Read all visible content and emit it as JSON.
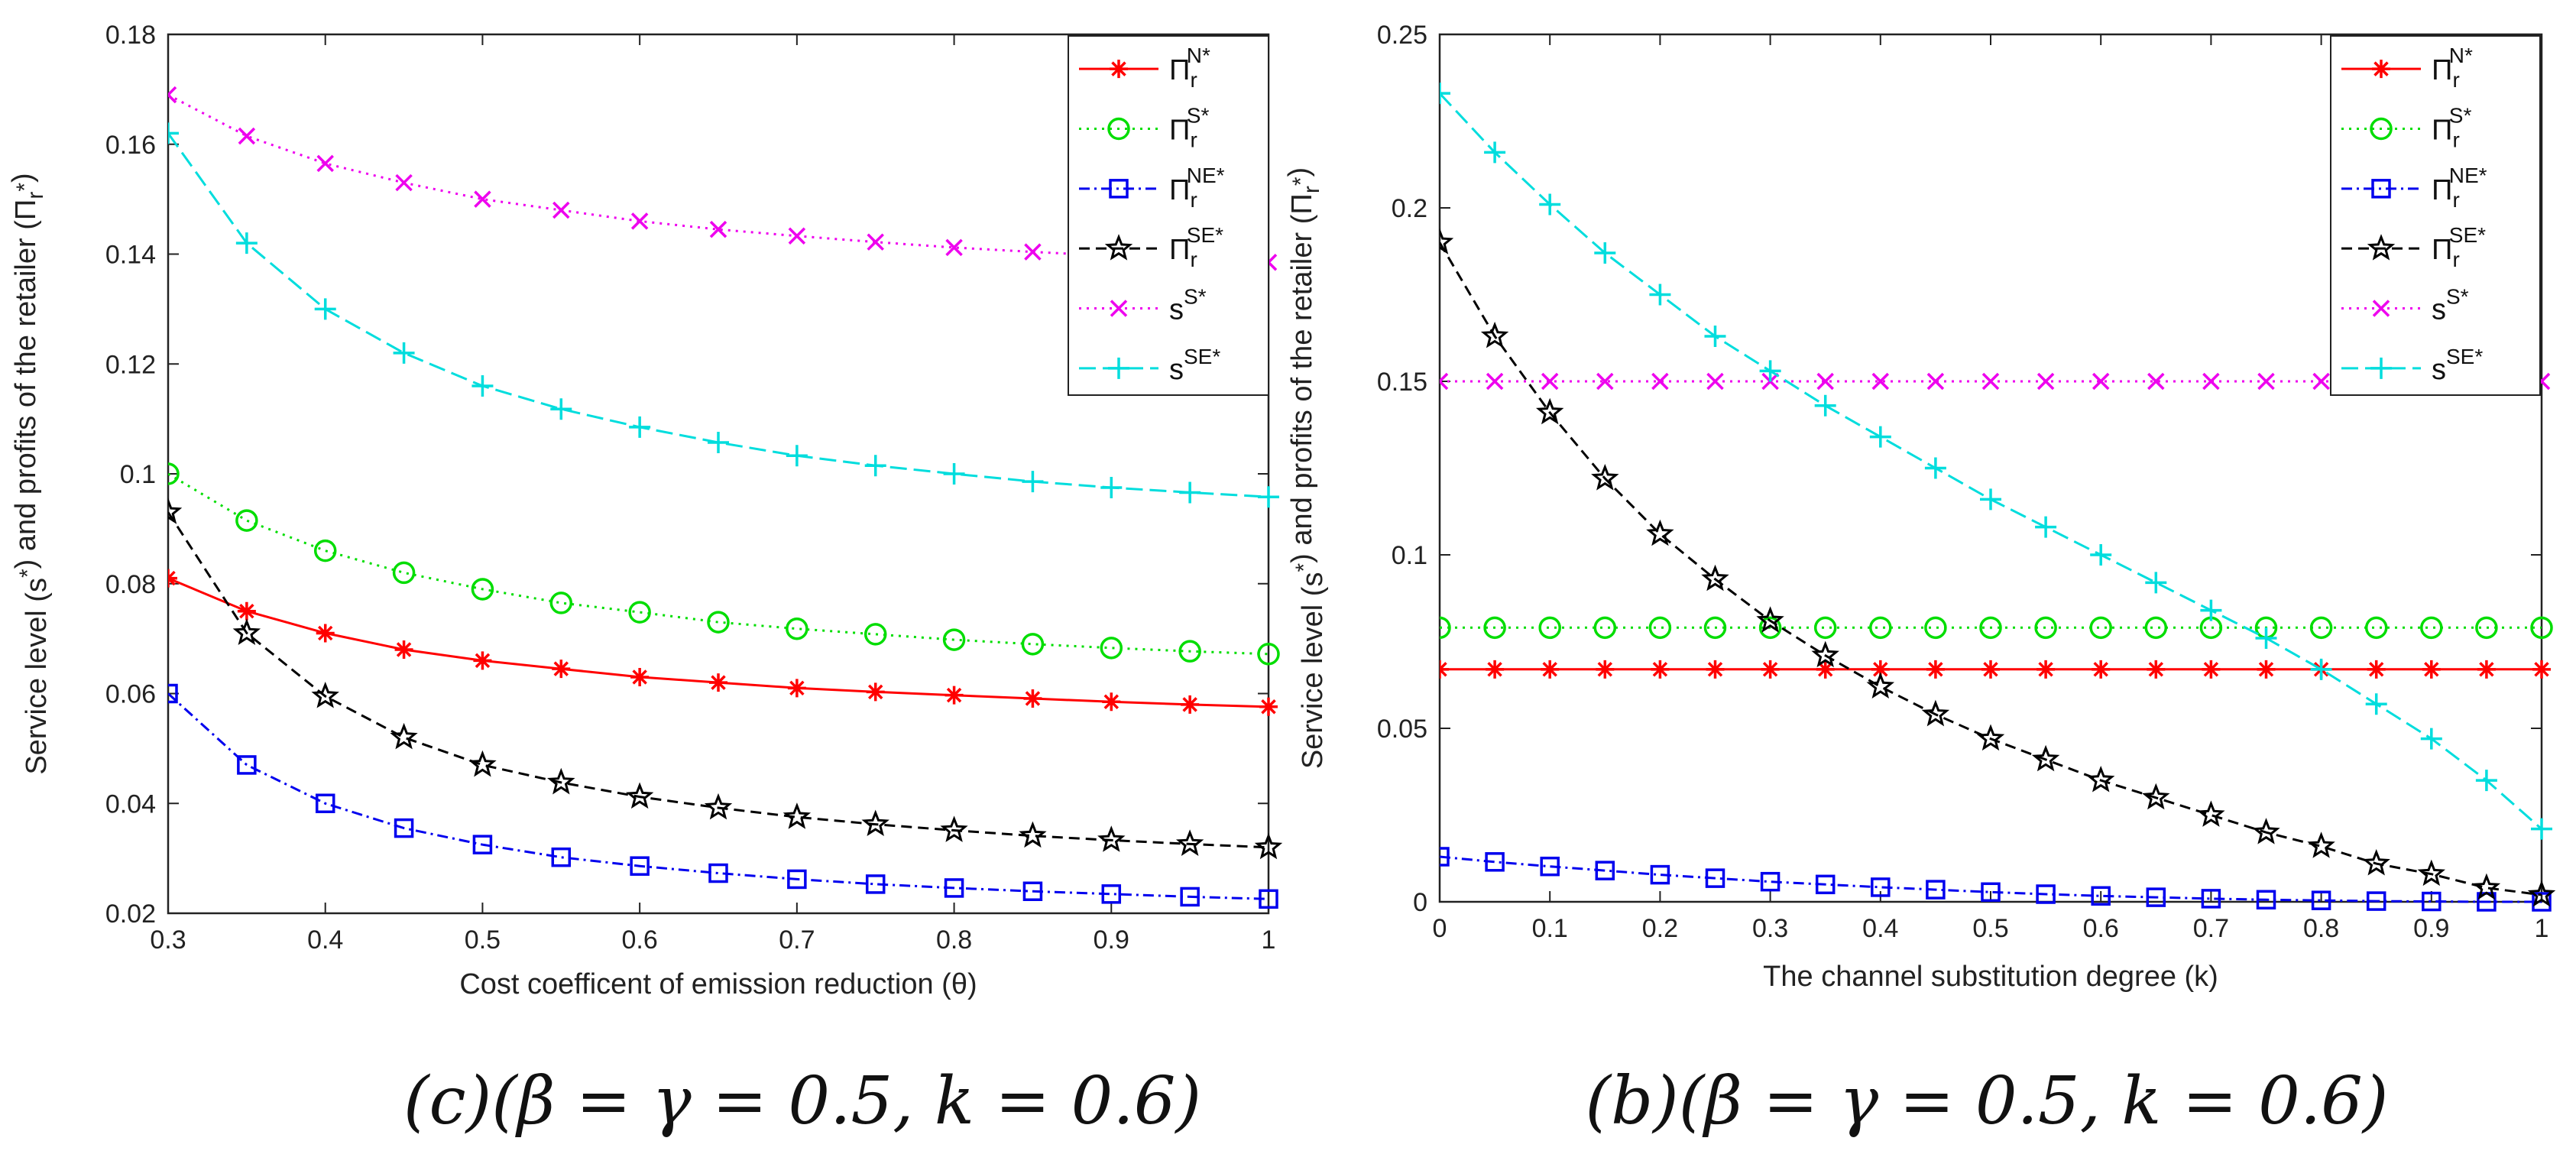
{
  "chart_data": [
    {
      "type": "line",
      "caption": "(c)(β = γ = 0.5,  k = 0.6)",
      "xlabel": "Cost coefficent of emission reduction  (θ)",
      "ylabel": "Service level (s*) and profits of the retailer (Πr*)",
      "xlim": [
        0.3,
        1
      ],
      "ylim": [
        0.02,
        0.18
      ],
      "xticks": [
        "0.3",
        "0.4",
        "0.5",
        "0.6",
        "0.7",
        "0.8",
        "0.9",
        "1"
      ],
      "yticks": [
        "0.02",
        "0.04",
        "0.06",
        "0.08",
        "0.1",
        "0.12",
        "0.14",
        "0.16",
        "0.18"
      ],
      "x": [
        0.3,
        0.35,
        0.4,
        0.45,
        0.5,
        0.55,
        0.6,
        0.65,
        0.7,
        0.75,
        0.8,
        0.85,
        0.9,
        0.95,
        1.0
      ],
      "legend_position": "top-right",
      "series": [
        {
          "name": "Πr N*",
          "base": "Π",
          "sub": "r",
          "sup": "N*",
          "color": "#ff0000",
          "dash": "",
          "marker": "asterisk",
          "values": [
            0.081,
            0.075,
            0.071,
            0.068,
            0.066,
            0.0645,
            0.063,
            0.062,
            0.061,
            0.0603,
            0.0597,
            0.0591,
            0.0585,
            0.058,
            0.0576
          ]
        },
        {
          "name": "Πr S*",
          "base": "Π",
          "sub": "r",
          "sup": "S*",
          "color": "#00dd00",
          "dash": "3,7",
          "marker": "circle",
          "values": [
            0.1,
            0.0915,
            0.086,
            0.082,
            0.079,
            0.0765,
            0.0748,
            0.073,
            0.0718,
            0.0708,
            0.0698,
            0.069,
            0.0683,
            0.0677,
            0.0672
          ]
        },
        {
          "name": "Πr NE*",
          "base": "Π",
          "sub": "r",
          "sup": "NE*",
          "color": "#0000ee",
          "dash": "14,6,3,6",
          "marker": "square",
          "values": [
            0.06,
            0.047,
            0.04,
            0.0355,
            0.0325,
            0.0302,
            0.0286,
            0.0273,
            0.0262,
            0.0253,
            0.0246,
            0.024,
            0.0235,
            0.023,
            0.0226
          ]
        },
        {
          "name": "Πr SE*",
          "base": "Π",
          "sub": "r",
          "sup": "SE*",
          "color": "#000000",
          "dash": "14,8",
          "marker": "star",
          "values": [
            0.093,
            0.071,
            0.0595,
            0.052,
            0.047,
            0.0438,
            0.0412,
            0.0392,
            0.0375,
            0.0362,
            0.0351,
            0.0341,
            0.0333,
            0.0326,
            0.032
          ]
        },
        {
          "name": "s S*",
          "base": "s",
          "sub": "",
          "sup": "S*",
          "color": "#ee00ee",
          "dash": "3,7",
          "marker": "x",
          "values": [
            0.169,
            0.1615,
            0.1565,
            0.153,
            0.15,
            0.148,
            0.146,
            0.1445,
            0.1433,
            0.1422,
            0.1412,
            0.1404,
            0.1397,
            0.1391,
            0.1385
          ]
        },
        {
          "name": "s SE*",
          "base": "s",
          "sub": "",
          "sup": "SE*",
          "color": "#00dddd",
          "dash": "22,9",
          "marker": "plus",
          "values": [
            0.162,
            0.142,
            0.13,
            0.122,
            0.116,
            0.1118,
            0.1085,
            0.1057,
            0.1033,
            0.1015,
            0.1,
            0.0986,
            0.0975,
            0.0966,
            0.0958
          ]
        }
      ]
    },
    {
      "type": "line",
      "caption": "(b)(β = γ = 0.5,  k = 0.6)",
      "xlabel": "The channel substitution degree (k)",
      "ylabel": "Service level (s*) and profits of the retailer (Πr*)",
      "xlim": [
        0,
        1
      ],
      "ylim": [
        0,
        0.25
      ],
      "xticks": [
        "0",
        "0.1",
        "0.2",
        "0.3",
        "0.4",
        "0.5",
        "0.6",
        "0.7",
        "0.8",
        "0.9",
        "1"
      ],
      "yticks": [
        "0",
        "0.05",
        "0.1",
        "0.15",
        "0.2",
        "0.25"
      ],
      "x": [
        0,
        0.05,
        0.1,
        0.15,
        0.2,
        0.25,
        0.3,
        0.35,
        0.4,
        0.45,
        0.5,
        0.55,
        0.6,
        0.65,
        0.7,
        0.75,
        0.8,
        0.85,
        0.9,
        0.95,
        1.0
      ],
      "legend_position": "top-right",
      "series": [
        {
          "name": "Πr N*",
          "base": "Π",
          "sub": "r",
          "sup": "N*",
          "color": "#ff0000",
          "dash": "",
          "marker": "asterisk",
          "values": [
            0.067,
            0.067,
            0.067,
            0.067,
            0.067,
            0.067,
            0.067,
            0.067,
            0.067,
            0.067,
            0.067,
            0.067,
            0.067,
            0.067,
            0.067,
            0.067,
            0.067,
            0.067,
            0.067,
            0.067,
            0.067
          ]
        },
        {
          "name": "Πr S*",
          "base": "Π",
          "sub": "r",
          "sup": "S*",
          "color": "#00dd00",
          "dash": "3,7",
          "marker": "circle",
          "values": [
            0.079,
            0.079,
            0.079,
            0.079,
            0.079,
            0.079,
            0.079,
            0.079,
            0.079,
            0.079,
            0.079,
            0.079,
            0.079,
            0.079,
            0.079,
            0.079,
            0.079,
            0.079,
            0.079,
            0.079,
            0.079
          ]
        },
        {
          "name": "Πr NE*",
          "base": "Π",
          "sub": "r",
          "sup": "NE*",
          "color": "#0000ee",
          "dash": "14,6,3,6",
          "marker": "square",
          "values": [
            0.013,
            0.0115,
            0.0102,
            0.009,
            0.0078,
            0.0068,
            0.0058,
            0.005,
            0.0042,
            0.0035,
            0.0028,
            0.0022,
            0.0017,
            0.0013,
            0.0009,
            0.0006,
            0.0004,
            0.0002,
            0.0001,
            0.0,
            0.0
          ]
        },
        {
          "name": "Πr SE*",
          "base": "Π",
          "sub": "r",
          "sup": "SE*",
          "color": "#000000",
          "dash": "14,8",
          "marker": "star",
          "values": [
            0.19,
            0.163,
            0.141,
            0.122,
            0.106,
            0.093,
            0.081,
            0.071,
            0.062,
            0.054,
            0.047,
            0.041,
            0.035,
            0.03,
            0.025,
            0.02,
            0.016,
            0.011,
            0.008,
            0.004,
            0.002
          ]
        },
        {
          "name": "s S*",
          "base": "s",
          "sub": "",
          "sup": "S*",
          "color": "#ee00ee",
          "dash": "3,7",
          "marker": "x",
          "values": [
            0.15,
            0.15,
            0.15,
            0.15,
            0.15,
            0.15,
            0.15,
            0.15,
            0.15,
            0.15,
            0.15,
            0.15,
            0.15,
            0.15,
            0.15,
            0.15,
            0.15,
            0.15,
            0.15,
            0.15,
            0.15
          ]
        },
        {
          "name": "s SE*",
          "base": "s",
          "sub": "",
          "sup": "SE*",
          "color": "#00dddd",
          "dash": "22,9",
          "marker": "plus",
          "values": [
            0.233,
            0.216,
            0.201,
            0.187,
            0.175,
            0.163,
            0.153,
            0.143,
            0.134,
            0.125,
            0.116,
            0.108,
            0.1,
            0.092,
            0.084,
            0.076,
            0.067,
            0.057,
            0.047,
            0.035,
            0.021
          ]
        }
      ]
    }
  ]
}
